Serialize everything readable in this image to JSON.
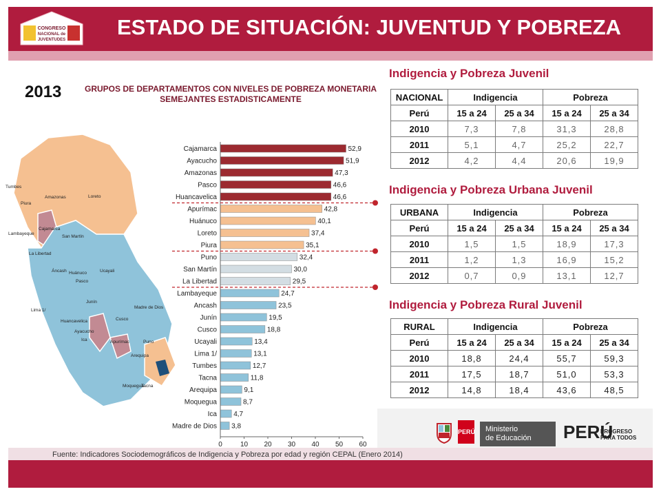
{
  "header": {
    "title": "ESTADO DE SITUACIÓN: JUVENTUD  Y POBREZA",
    "logo": {
      "line1": "CONGRESO",
      "line2": "NACIONAL de",
      "line3": "JUVENTUDES"
    }
  },
  "year": "2013",
  "chart_data": {
    "type": "bar",
    "orientation": "horizontal",
    "title": "GRUPOS DE DEPARTAMENTOS CON NIVELES DE POBREZA MONETARIA SEMEJANTES ESTADISTICAMENTE",
    "categories": [
      "Cajamarca",
      "Ayacucho",
      "Amazonas",
      "Pasco",
      "Huancavelica",
      "Apurímac",
      "Huánuco",
      "Loreto",
      "Piura",
      "Puno",
      "San Martín",
      "La Libertad",
      "Lambayeque",
      "Ancash",
      "Junín",
      "Cusco",
      "Ucayali",
      "Lima 1/",
      "Tumbes",
      "Tacna",
      "Arequipa",
      "Moquegua",
      "Ica",
      "Madre de Dios"
    ],
    "values": [
      52.9,
      51.9,
      47.3,
      46.6,
      46.6,
      42.8,
      40.1,
      37.4,
      35.1,
      32.4,
      30.0,
      29.5,
      24.7,
      23.5,
      19.5,
      18.8,
      13.4,
      13.1,
      12.7,
      11.8,
      9.1,
      8.7,
      4.7,
      3.8
    ],
    "value_labels": [
      "52,9",
      "51,9",
      "47,3",
      "46,6",
      "46,6",
      "42,8",
      "40,1",
      "37,4",
      "35,1",
      "32,4",
      "30,0",
      "29,5",
      "24,7",
      "23,5",
      "19,5",
      "18,8",
      "13,4",
      "13,1",
      "12,7",
      "11,8",
      "9,1",
      "8,7",
      "4,7",
      "3,8"
    ],
    "groups": [
      1,
      1,
      1,
      1,
      1,
      2,
      2,
      2,
      2,
      3,
      3,
      3,
      4,
      4,
      4,
      4,
      4,
      4,
      4,
      4,
      4,
      4,
      4,
      4
    ],
    "group_colors": {
      "1": "#9c2a30",
      "2": "#f5c091",
      "3": "#d3dde3",
      "4": "#8fc3da"
    },
    "xlim": [
      0,
      60
    ],
    "xticks": [
      "0",
      "10",
      "20",
      "30",
      "40",
      "50",
      "60"
    ],
    "map_labels": [
      "Tumbes",
      "Piura",
      "Amazonas",
      "Loreto",
      "Cajamarca",
      "Lambayeque",
      "San Martín",
      "La Libertad",
      "Áncash",
      "Huánuco",
      "Ucayali",
      "Pasco",
      "Lima 1/",
      "Junín",
      "Huancavelica",
      "Madre de Dios",
      "Cusco",
      "Ica",
      "Ayacucho",
      "Apurímac",
      "Puno",
      "Arequipa",
      "Moquegua",
      "Tacna"
    ]
  },
  "tables": [
    {
      "title": "Indigencia y Pobreza Juvenil",
      "region": "NACIONAL",
      "group1": "Indigencia",
      "group2": "Pobreza",
      "country": "Perú",
      "ages": [
        "15 a 24",
        "25 a 34",
        "15 a 24",
        "25 a 34"
      ],
      "rows": [
        {
          "year": "2010",
          "values": [
            "7,3",
            "7,8",
            "31,3",
            "28,8"
          ]
        },
        {
          "year": "2011",
          "values": [
            "5,1",
            "4,7",
            "25,2",
            "22,7"
          ]
        },
        {
          "year": "2012",
          "values": [
            "4,2",
            "4,4",
            "20,6",
            "19,9"
          ]
        }
      ]
    },
    {
      "title": "Indigencia y Pobreza Urbana Juvenil",
      "region": "URBANA",
      "group1": "Indigencia",
      "group2": "Pobreza",
      "country": "Perú",
      "ages": [
        "15 a 24",
        "25 a 34",
        "15 a 24",
        "25 a 34"
      ],
      "rows": [
        {
          "year": "2010",
          "values": [
            "1,5",
            "1,5",
            "18,9",
            "17,3"
          ]
        },
        {
          "year": "2011",
          "values": [
            "1,2",
            "1,3",
            "16,9",
            "15,2"
          ]
        },
        {
          "year": "2012",
          "values": [
            "0,7",
            "0,9",
            "13,1",
            "12,7"
          ]
        }
      ]
    },
    {
      "title": "Indigencia y Pobreza Rural Juvenil",
      "region": "RURAL",
      "group1": "Indigencia",
      "group2": "Pobreza",
      "country": "Perú",
      "ages": [
        "15 a 24",
        "25 a 34",
        "15 a 24",
        "25 a 34"
      ],
      "rows": [
        {
          "year": "2010",
          "values": [
            "18,8",
            "24,4",
            "55,7",
            "59,3"
          ]
        },
        {
          "year": "2011",
          "values": [
            "17,5",
            "18,7",
            "51,0",
            "53,3"
          ]
        },
        {
          "year": "2012",
          "values": [
            "14,8",
            "18,4",
            "43,6",
            "48,5"
          ]
        }
      ]
    }
  ],
  "footer": {
    "source": "Fuente: Indicadores Sociodemográficos de Indigencia y Pobreza por edad y región CEPAL (Enero 2014)"
  },
  "logos": {
    "peru_badge": "PERÚ",
    "ministry_line1": "Ministerio",
    "ministry_line2": "de Educación",
    "peru_big": "PERÚ",
    "slogan_line1": "PROGRESO",
    "slogan_line2": "PARA TODOS"
  },
  "colors": {
    "brand": "#b01c3e",
    "accent_light": "#e0a0b0"
  }
}
